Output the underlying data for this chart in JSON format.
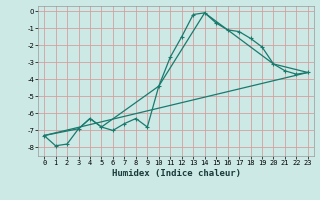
{
  "title": "",
  "xlabel": "Humidex (Indice chaleur)",
  "ylabel": "",
  "background_color": "#cce9e5",
  "grid_color": "#d4a0a0",
  "line_color": "#1a7a6e",
  "xlim": [
    -0.5,
    23.5
  ],
  "ylim": [
    -8.5,
    0.3
  ],
  "xticks": [
    0,
    1,
    2,
    3,
    4,
    5,
    6,
    7,
    8,
    9,
    10,
    11,
    12,
    13,
    14,
    15,
    16,
    17,
    18,
    19,
    20,
    21,
    22,
    23
  ],
  "yticks": [
    0,
    -1,
    -2,
    -3,
    -4,
    -5,
    -6,
    -7,
    -8
  ],
  "line1_x": [
    0,
    1,
    2,
    3,
    4,
    5,
    6,
    7,
    8,
    9,
    10,
    11,
    12,
    13,
    14,
    15,
    16,
    17,
    18,
    19,
    20,
    21,
    22,
    23
  ],
  "line1_y": [
    -7.3,
    -7.9,
    -7.8,
    -6.9,
    -6.3,
    -6.8,
    -7.0,
    -6.6,
    -6.3,
    -6.8,
    -4.4,
    -2.7,
    -1.5,
    -0.2,
    -0.1,
    -0.7,
    -1.1,
    -1.2,
    -1.6,
    -2.1,
    -3.1,
    -3.5,
    -3.7,
    -3.6
  ],
  "line2_x": [
    0,
    3,
    4,
    5,
    10,
    14,
    20,
    23
  ],
  "line2_y": [
    -7.3,
    -6.9,
    -6.3,
    -6.8,
    -4.4,
    -0.1,
    -3.1,
    -3.6
  ],
  "line3_x": [
    0,
    23
  ],
  "line3_y": [
    -7.3,
    -3.6
  ],
  "tick_fontsize": 5.0,
  "xlabel_fontsize": 6.5
}
